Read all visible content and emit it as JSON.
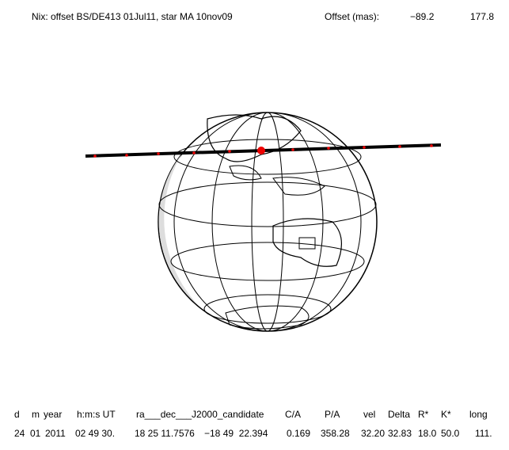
{
  "header": {
    "title": "Nix: offset BS/DE413 01Jul11, star MA 10nov09",
    "offset_label": "Offset (mas):",
    "offset_values": [
      "−89.2",
      "177.8"
    ]
  },
  "table": {
    "header": [
      "d",
      "m",
      "year",
      "h:m:s UT",
      "ra___dec___J2000_candidate",
      "C/A",
      "P/A",
      "vel",
      "Delta",
      "R*",
      "K*",
      "long"
    ],
    "rows": [
      [
        "24",
        "01",
        "2011",
        "02 49 30.",
        "18 25 11.7576",
        "−18 49  22.394",
        "0.169",
        "358.28",
        "32.20",
        "32.83",
        "18.0",
        "50.0",
        "111."
      ]
    ]
  }
}
